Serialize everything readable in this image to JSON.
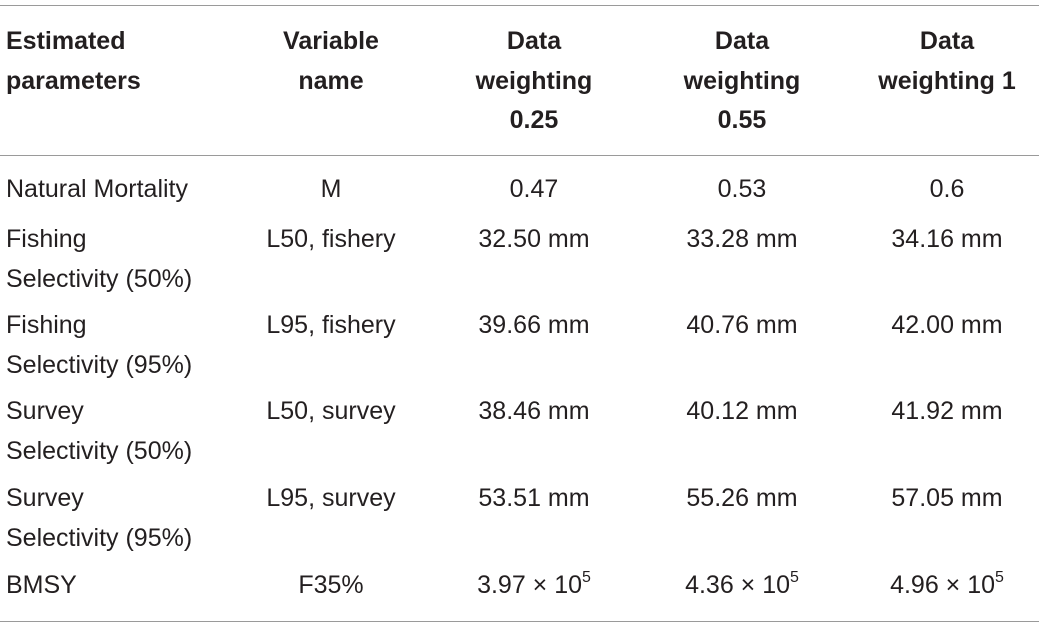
{
  "table": {
    "header": [
      [
        "Estimated",
        "parameters"
      ],
      [
        "Variable",
        "name"
      ],
      [
        "Data",
        "weighting",
        "0.25"
      ],
      [
        "Data",
        "weighting",
        "0.55"
      ],
      [
        "Data",
        "weighting 1"
      ]
    ],
    "rows": [
      {
        "parameter": [
          "Natural Mortality"
        ],
        "variable": "M",
        "values": [
          "0.47",
          "0.53",
          "0.6"
        ]
      },
      {
        "parameter": [
          "Fishing",
          "Selectivity (50%)"
        ],
        "variable": "L50, fishery",
        "values": [
          "32.50 mm",
          "33.28 mm",
          "34.16 mm"
        ]
      },
      {
        "parameter": [
          "Fishing",
          "Selectivity (95%)"
        ],
        "variable": "L95, fishery",
        "values": [
          "39.66 mm",
          "40.76 mm",
          "42.00 mm"
        ]
      },
      {
        "parameter": [
          "Survey",
          "Selectivity (50%)"
        ],
        "variable": "L50, survey",
        "values": [
          "38.46 mm",
          "40.12 mm",
          "41.92 mm"
        ]
      },
      {
        "parameter": [
          "Survey",
          "Selectivity (95%)"
        ],
        "variable": "L95, survey",
        "values": [
          "53.51 mm",
          "55.26 mm",
          "57.05 mm"
        ]
      },
      {
        "parameter": [
          "BMSY"
        ],
        "variable": "F35%",
        "values": [
          {
            "base": "3.97 × 10",
            "exp": "5"
          },
          {
            "base": "4.36 × 10",
            "exp": "5"
          },
          {
            "base": "4.96 × 10",
            "exp": "5"
          }
        ]
      }
    ]
  }
}
